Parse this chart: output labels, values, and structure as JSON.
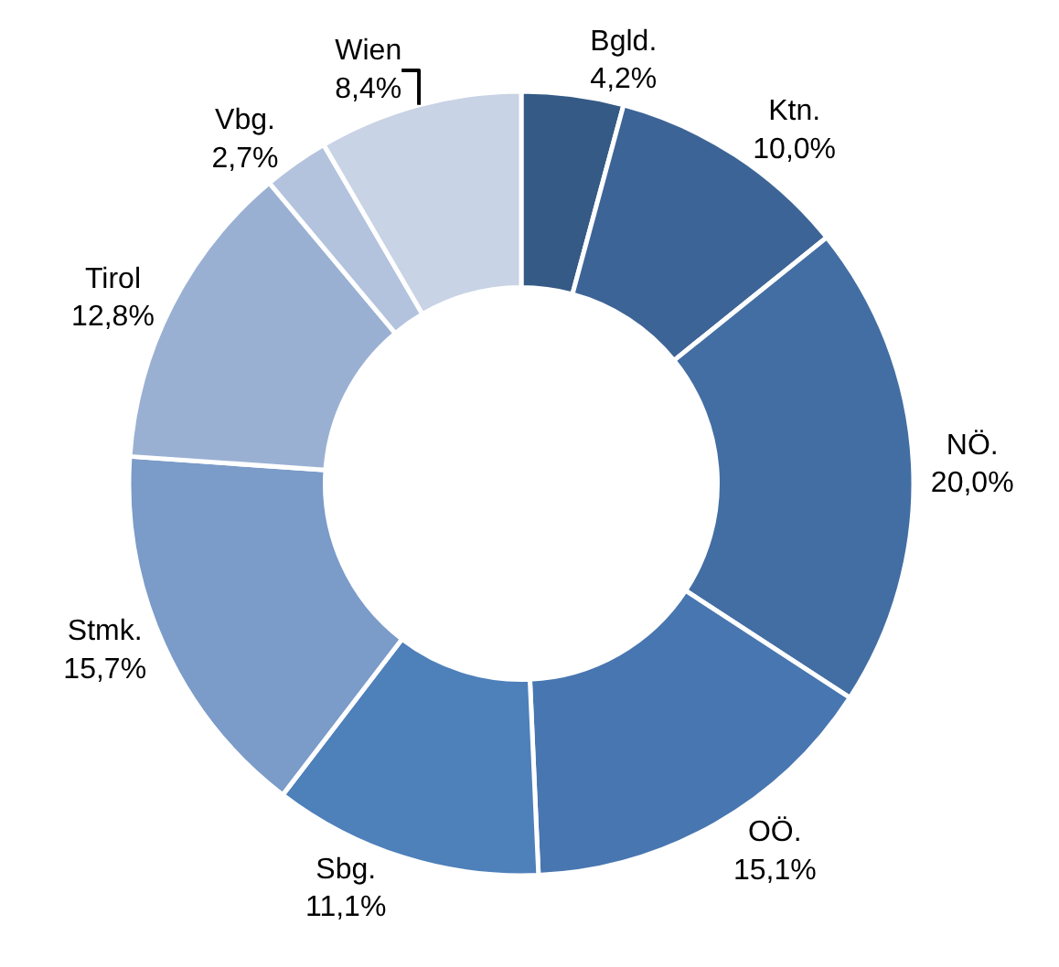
{
  "chart_data": {
    "type": "donut",
    "categories": [
      "Bgld.",
      "Ktn.",
      "NÖ.",
      "OÖ.",
      "Sbg.",
      "Stmk.",
      "Tirol",
      "Vbg.",
      "Wien"
    ],
    "values": [
      4.2,
      10.0,
      20.0,
      15.1,
      11.1,
      15.7,
      12.8,
      2.7,
      8.4
    ],
    "value_labels": [
      "4,2%",
      "10,0%",
      "20,0%",
      "15,1%",
      "11,1%",
      "15,7%",
      "12,8%",
      "2,7%",
      "8,4%"
    ],
    "colors": [
      "#355a85",
      "#3d6496",
      "#436ea3",
      "#4876b0",
      "#4e80ba",
      "#7b9bc8",
      "#9ab0d3",
      "#b3c3de",
      "#c8d3e5"
    ],
    "legend": false
  }
}
